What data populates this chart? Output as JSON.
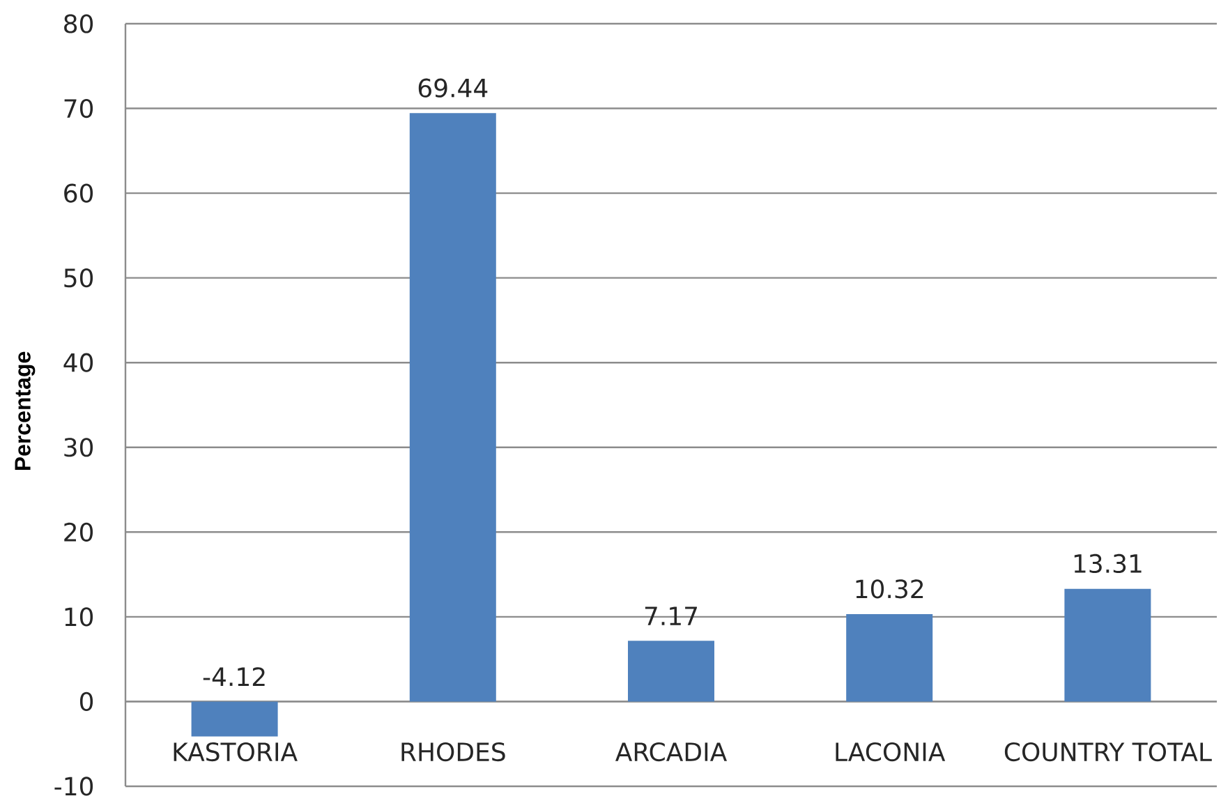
{
  "chart_data": {
    "type": "bar",
    "ylabel": "Percentage",
    "categories": [
      "KASTORIA",
      "RHODES",
      "ARCADIA",
      "LACONIA",
      "COUNTRY TOTAL"
    ],
    "values": [
      -4.12,
      69.44,
      7.17,
      10.32,
      13.31
    ],
    "color": "#4f81bd",
    "ylim": [
      -10,
      80
    ],
    "yticks": [
      -10,
      0,
      10,
      20,
      30,
      40,
      50,
      60,
      70,
      80
    ],
    "grid": "y",
    "data_labels": true
  }
}
